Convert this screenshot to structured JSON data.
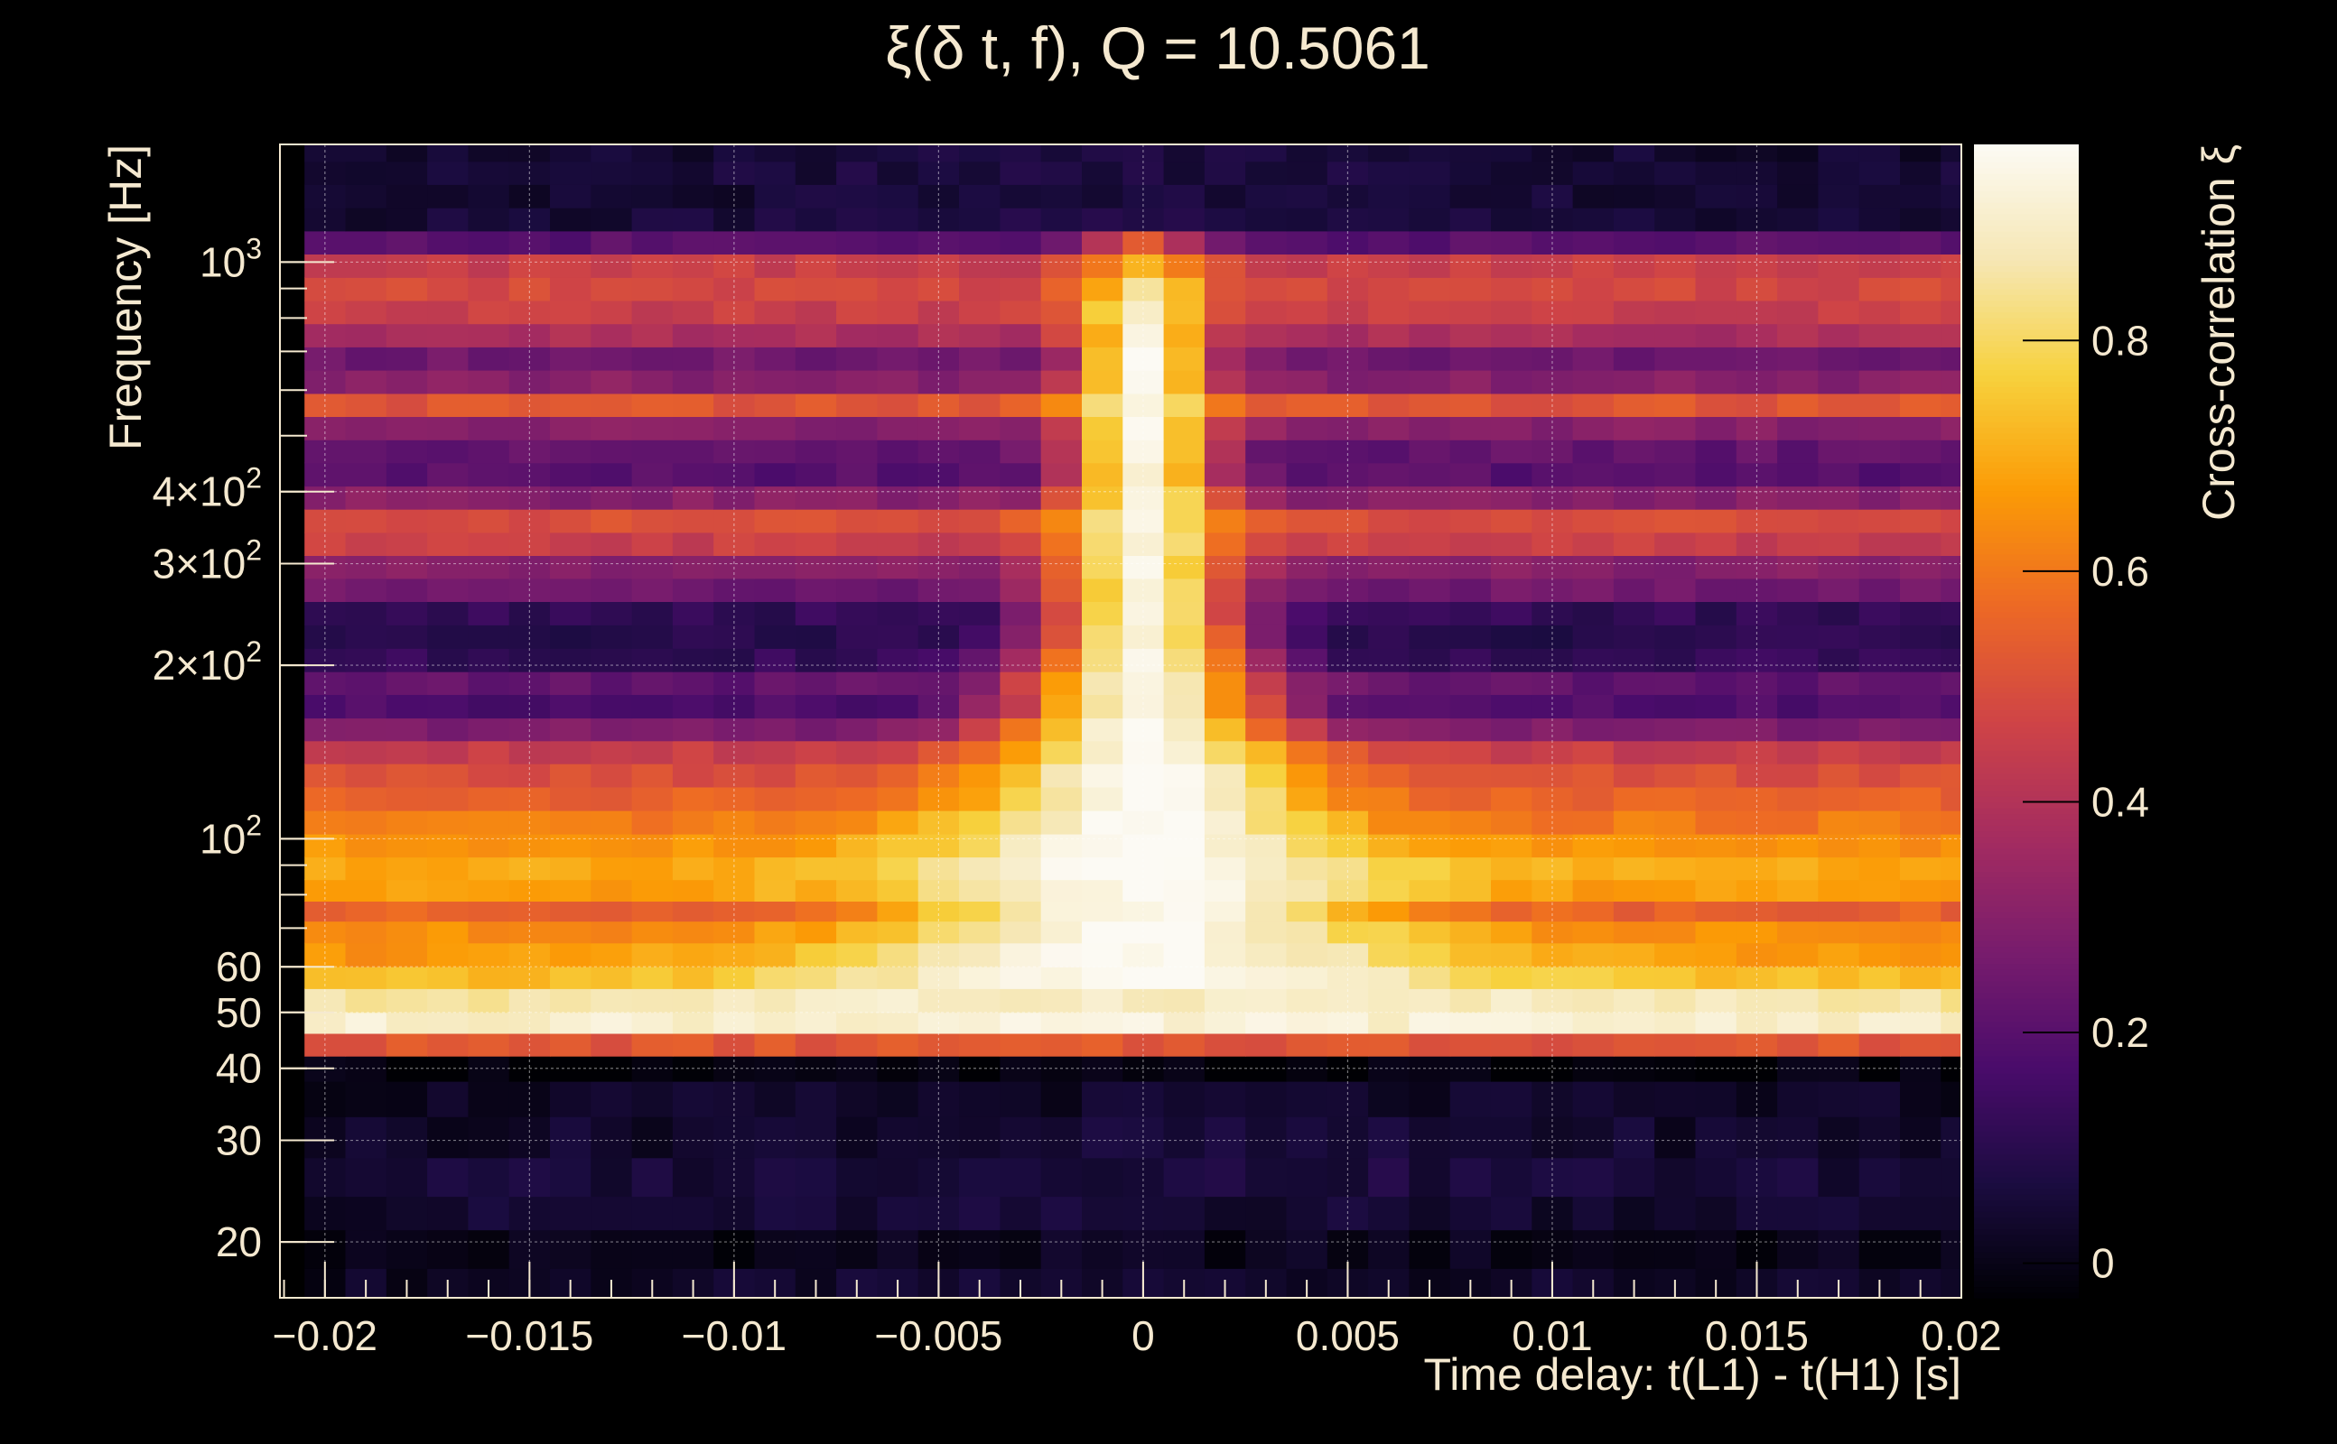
{
  "chart_data": {
    "type": "heatmap",
    "title": "ξ(δ t, f), Q = 10.5061",
    "xlabel": "Time delay: t(L1) - t(H1) [s]",
    "ylabel": "Frequency [Hz]",
    "zlabel": "Cross-correlation ξ",
    "xlim": [
      -0.0211,
      0.02
    ],
    "ylim": [
      16,
      1600
    ],
    "yscale": "log",
    "zlim": [
      -0.03,
      0.97
    ],
    "grid": true,
    "x_ticks": [
      {
        "value": -0.02,
        "label": "−0.02"
      },
      {
        "value": -0.015,
        "label": "−0.015"
      },
      {
        "value": -0.01,
        "label": "−0.01"
      },
      {
        "value": -0.005,
        "label": "−0.005"
      },
      {
        "value": 0,
        "label": "0"
      },
      {
        "value": 0.005,
        "label": "0.005"
      },
      {
        "value": 0.01,
        "label": "0.01"
      },
      {
        "value": 0.015,
        "label": "0.015"
      },
      {
        "value": 0.02,
        "label": "0.02"
      }
    ],
    "y_ticks": [
      {
        "value": 20,
        "label": "20"
      },
      {
        "value": 30,
        "label": "30"
      },
      {
        "value": 40,
        "label": "40"
      },
      {
        "value": 50,
        "label": "50"
      },
      {
        "value": 60,
        "label": "60"
      },
      {
        "value": 100,
        "label": "10",
        "sup": "2"
      },
      {
        "value": 200,
        "label": "2×10",
        "sup": "2"
      },
      {
        "value": 300,
        "label": "3×10",
        "sup": "2"
      },
      {
        "value": 400,
        "label": "4×10",
        "sup": "2"
      },
      {
        "value": 1000,
        "label": "10",
        "sup": "3"
      }
    ],
    "z_ticks": [
      {
        "value": 0,
        "label": "0"
      },
      {
        "value": 0.2,
        "label": "0.2"
      },
      {
        "value": 0.4,
        "label": "0.4"
      },
      {
        "value": 0.6,
        "label": "0.6"
      },
      {
        "value": 0.8,
        "label": "0.8"
      }
    ],
    "colormap": [
      "#000004",
      "#1b0c41",
      "#4a0c6b",
      "#781c6d",
      "#a52c60",
      "#cf4446",
      "#ed6925",
      "#fb9b06",
      "#f7d13d",
      "#f6e7b4",
      "#fcfaf4"
    ],
    "x_bin_width": 0.001,
    "x_bins": 41,
    "frequency_bands": [
      {
        "f_lo": 16,
        "f_hi": 18,
        "base": 0.02,
        "peak": 0.04,
        "width": 0.01
      },
      {
        "f_lo": 18,
        "f_hi": 21,
        "base": 0.0,
        "peak": 0.01,
        "width": 0.01
      },
      {
        "f_lo": 21,
        "f_hi": 24,
        "base": 0.04,
        "peak": 0.05,
        "width": 0.012
      },
      {
        "f_lo": 24,
        "f_hi": 28,
        "base": 0.05,
        "peak": 0.07,
        "width": 0.012
      },
      {
        "f_lo": 28,
        "f_hi": 33,
        "base": 0.03,
        "peak": 0.05,
        "width": 0.012
      },
      {
        "f_lo": 33,
        "f_hi": 38,
        "base": 0.02,
        "peak": 0.03,
        "width": 0.01
      },
      {
        "f_lo": 38,
        "f_hi": 42,
        "base": -0.02,
        "peak": -0.02,
        "width": 0.01
      },
      {
        "f_lo": 42,
        "f_hi": 46,
        "base": 0.52,
        "peak": 0.52,
        "width": 0.01
      },
      {
        "f_lo": 46,
        "f_hi": 50,
        "base": 0.9,
        "peak": 0.92,
        "width": 0.02
      },
      {
        "f_lo": 50,
        "f_hi": 55,
        "base": 0.82,
        "peak": 0.9,
        "width": 0.02
      },
      {
        "f_lo": 55,
        "f_hi": 60,
        "base": 0.72,
        "peak": 0.97,
        "width": 0.008
      },
      {
        "f_lo": 60,
        "f_hi": 66,
        "base": 0.66,
        "peak": 0.97,
        "width": 0.007
      },
      {
        "f_lo": 66,
        "f_hi": 72,
        "base": 0.64,
        "peak": 0.97,
        "width": 0.006
      },
      {
        "f_lo": 72,
        "f_hi": 78,
        "base": 0.55,
        "peak": 0.97,
        "width": 0.0055
      },
      {
        "f_lo": 78,
        "f_hi": 85,
        "base": 0.67,
        "peak": 0.97,
        "width": 0.006
      },
      {
        "f_lo": 85,
        "f_hi": 93,
        "base": 0.7,
        "peak": 0.97,
        "width": 0.0055
      },
      {
        "f_lo": 93,
        "f_hi": 102,
        "base": 0.65,
        "peak": 0.97,
        "width": 0.005
      },
      {
        "f_lo": 102,
        "f_hi": 112,
        "base": 0.6,
        "peak": 0.97,
        "width": 0.0045
      },
      {
        "f_lo": 112,
        "f_hi": 123,
        "base": 0.55,
        "peak": 0.97,
        "width": 0.004
      },
      {
        "f_lo": 123,
        "f_hi": 135,
        "base": 0.5,
        "peak": 0.97,
        "width": 0.0038
      },
      {
        "f_lo": 135,
        "f_hi": 148,
        "base": 0.45,
        "peak": 0.96,
        "width": 0.0035
      },
      {
        "f_lo": 148,
        "f_hi": 162,
        "base": 0.28,
        "peak": 0.96,
        "width": 0.0033
      },
      {
        "f_lo": 162,
        "f_hi": 178,
        "base": 0.18,
        "peak": 0.95,
        "width": 0.003
      },
      {
        "f_lo": 178,
        "f_hi": 195,
        "base": 0.22,
        "peak": 0.95,
        "width": 0.0028
      },
      {
        "f_lo": 195,
        "f_hi": 214,
        "base": 0.12,
        "peak": 0.95,
        "width": 0.0026
      },
      {
        "f_lo": 214,
        "f_hi": 235,
        "base": 0.1,
        "peak": 0.94,
        "width": 0.0024
      },
      {
        "f_lo": 235,
        "f_hi": 258,
        "base": 0.12,
        "peak": 0.94,
        "width": 0.0022
      },
      {
        "f_lo": 258,
        "f_hi": 283,
        "base": 0.25,
        "peak": 0.94,
        "width": 0.002
      },
      {
        "f_lo": 283,
        "f_hi": 310,
        "base": 0.3,
        "peak": 0.93,
        "width": 0.002
      },
      {
        "f_lo": 310,
        "f_hi": 340,
        "base": 0.45,
        "peak": 0.93,
        "width": 0.0019
      },
      {
        "f_lo": 340,
        "f_hi": 373,
        "base": 0.5,
        "peak": 0.93,
        "width": 0.0018
      },
      {
        "f_lo": 373,
        "f_hi": 409,
        "base": 0.3,
        "peak": 0.93,
        "width": 0.0018
      },
      {
        "f_lo": 409,
        "f_hi": 449,
        "base": 0.2,
        "peak": 0.93,
        "width": 0.0017
      },
      {
        "f_lo": 449,
        "f_hi": 492,
        "base": 0.22,
        "peak": 0.95,
        "width": 0.0017
      },
      {
        "f_lo": 492,
        "f_hi": 540,
        "base": 0.3,
        "peak": 0.94,
        "width": 0.0016
      },
      {
        "f_lo": 540,
        "f_hi": 592,
        "base": 0.52,
        "peak": 0.95,
        "width": 0.0016
      },
      {
        "f_lo": 592,
        "f_hi": 650,
        "base": 0.3,
        "peak": 0.95,
        "width": 0.0015
      },
      {
        "f_lo": 650,
        "f_hi": 713,
        "base": 0.25,
        "peak": 0.96,
        "width": 0.0015
      },
      {
        "f_lo": 713,
        "f_hi": 782,
        "base": 0.38,
        "peak": 0.95,
        "width": 0.0014
      },
      {
        "f_lo": 782,
        "f_hi": 858,
        "base": 0.45,
        "peak": 0.93,
        "width": 0.0014
      },
      {
        "f_lo": 858,
        "f_hi": 941,
        "base": 0.48,
        "peak": 0.85,
        "width": 0.0014
      },
      {
        "f_lo": 941,
        "f_hi": 1033,
        "base": 0.45,
        "peak": 0.7,
        "width": 0.0014
      },
      {
        "f_lo": 1033,
        "f_hi": 1133,
        "base": 0.2,
        "peak": 0.55,
        "width": 0.0014
      },
      {
        "f_lo": 1133,
        "f_hi": 1243,
        "base": 0.05,
        "peak": 0.07,
        "width": 0.01
      },
      {
        "f_lo": 1243,
        "f_hi": 1364,
        "base": 0.04,
        "peak": 0.06,
        "width": 0.01
      },
      {
        "f_lo": 1364,
        "f_hi": 1496,
        "base": 0.05,
        "peak": 0.07,
        "width": 0.01
      },
      {
        "f_lo": 1496,
        "f_hi": 1600,
        "base": 0.04,
        "peak": 0.06,
        "width": 0.01
      }
    ]
  }
}
